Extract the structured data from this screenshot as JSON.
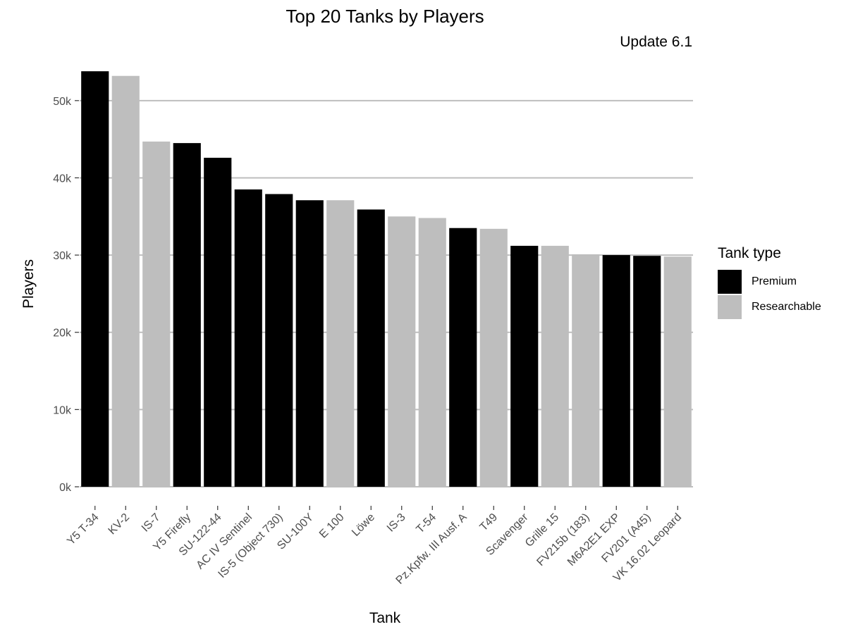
{
  "chart_data": {
    "type": "bar",
    "title": "Top 20 Tanks by Players",
    "subtitle": "Update 6.1",
    "xlabel": "Tank",
    "ylabel": "Players",
    "ylim": [
      0,
      55000
    ],
    "y_ticks": [
      {
        "value": 0,
        "label": "0k"
      },
      {
        "value": 10000,
        "label": "10k"
      },
      {
        "value": 20000,
        "label": "20k"
      },
      {
        "value": 30000,
        "label": "30k"
      },
      {
        "value": 40000,
        "label": "40k"
      },
      {
        "value": 50000,
        "label": "50k"
      }
    ],
    "grid": "horizontal",
    "legend": {
      "title": "Tank type",
      "position": "right",
      "entries": [
        {
          "name": "Premium",
          "color": "#000000"
        },
        {
          "name": "Researchable",
          "color": "#bebebe"
        }
      ]
    },
    "categories": [
      "Y5 T-34",
      "KV-2",
      "IS-7",
      "Y5 Firefly",
      "SU-122-44",
      "AC IV Sentinel",
      "IS-5 (Object 730)",
      "SU-100Y",
      "E 100",
      "Löwe",
      "IS-3",
      "T-54",
      "Pz.Kpfw. III Ausf. A",
      "T49",
      "Scavenger",
      "Grille 15",
      "FV215b (183)",
      "M6A2E1 EXP",
      "FV201 (A45)",
      "VK 16.02 Leopard"
    ],
    "values": [
      53800,
      53200,
      44700,
      44500,
      42600,
      38500,
      37900,
      37100,
      37100,
      35900,
      35000,
      34800,
      33500,
      33400,
      31200,
      31200,
      30100,
      30000,
      29900,
      29800
    ],
    "tank_types": [
      "Premium",
      "Researchable",
      "Researchable",
      "Premium",
      "Premium",
      "Premium",
      "Premium",
      "Premium",
      "Researchable",
      "Premium",
      "Researchable",
      "Researchable",
      "Premium",
      "Researchable",
      "Premium",
      "Researchable",
      "Researchable",
      "Premium",
      "Premium",
      "Researchable"
    ]
  }
}
